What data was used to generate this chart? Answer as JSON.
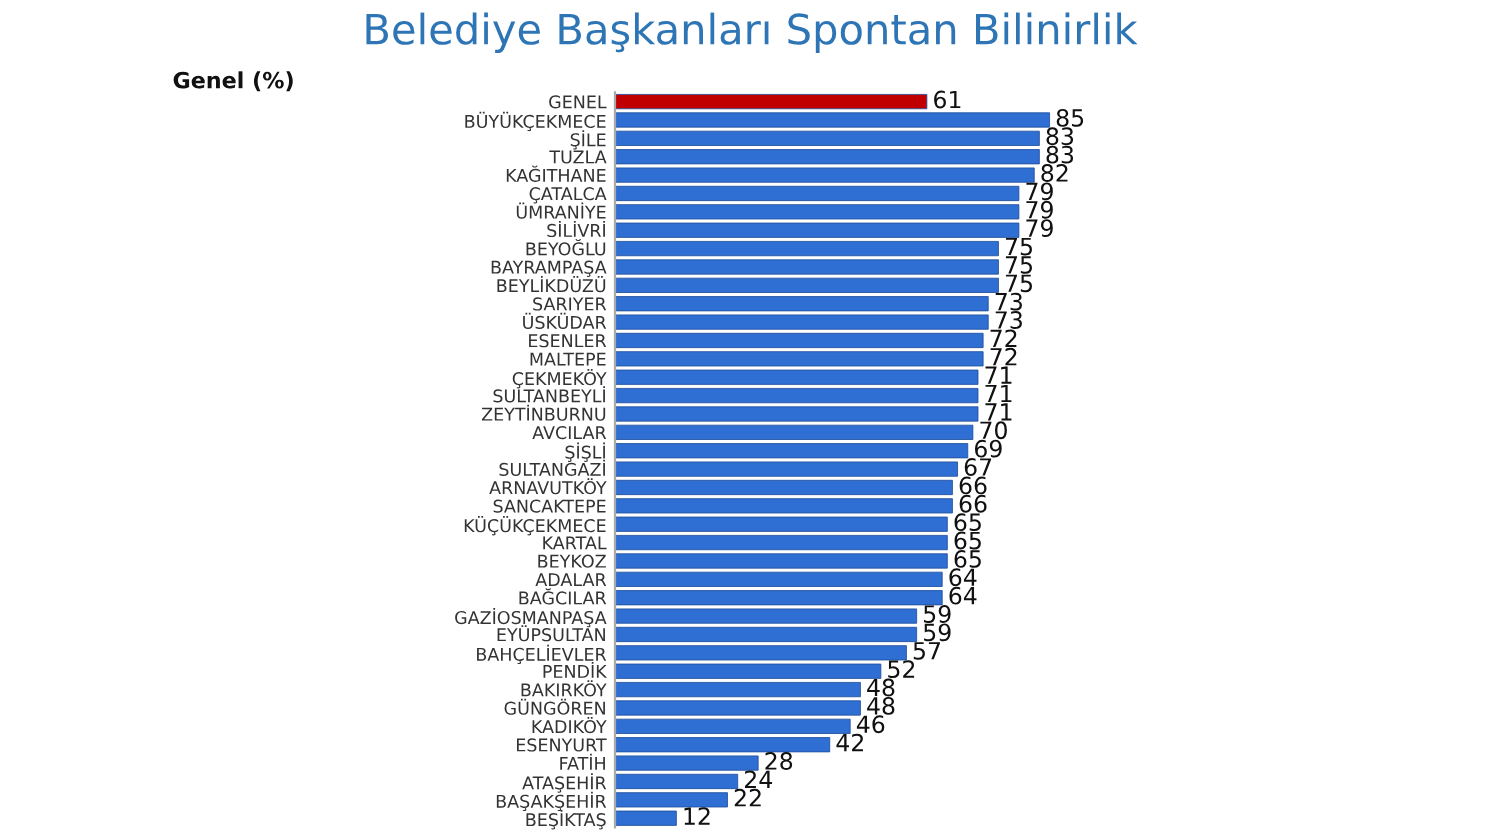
{
  "chart_data": {
    "type": "bar",
    "orientation": "horizontal",
    "title": "Belediye Başkanları Spontan Bilinirlik",
    "subtitle": "Genel (%)",
    "categories": [
      "GENEL",
      "BÜYÜKÇEKMECE",
      "ŞİLE",
      "TUZLA",
      "KAĞITHANE",
      "ÇATALCA",
      "ÜMRANİYE",
      "SİLİVRİ",
      "BEYOĞLU",
      "BAYRAMPAŞA",
      "BEYLİKDÜZÜ",
      "SARIYER",
      "ÜSKÜDAR",
      "ESENLER",
      "MALTEPE",
      "ÇEKMEKÖY",
      "SULTANBEYLİ",
      "ZEYTİNBURNU",
      "AVCILAR",
      "ŞİŞLİ",
      "SULTANGAZİ",
      "ARNAVUTKÖY",
      "SANCAKTEPE",
      "KÜÇÜKÇEKMECE",
      "KARTAL",
      "BEYKOZ",
      "ADALAR",
      "BAĞCILAR",
      "GAZİOSMANPAŞA",
      "EYÜPSULTAN",
      "BAHÇELİEVLER",
      "PENDİK",
      "BAKIRKÖY",
      "GÜNGÖREN",
      "KADIKÖY",
      "ESENYURT",
      "FATİH",
      "ATAŞEHİR",
      "BAŞAKŞEHİR",
      "BEŞİKTAŞ"
    ],
    "values": [
      61,
      85,
      83,
      83,
      82,
      79,
      79,
      79,
      75,
      75,
      75,
      73,
      73,
      72,
      72,
      71,
      71,
      71,
      70,
      69,
      67,
      66,
      66,
      65,
      65,
      65,
      64,
      64,
      59,
      59,
      57,
      52,
      48,
      48,
      46,
      42,
      28,
      24,
      22,
      12
    ],
    "colors": [
      "#c00000",
      "#2f6ed3",
      "#2f6ed3",
      "#2f6ed3",
      "#2f6ed3",
      "#2f6ed3",
      "#2f6ed3",
      "#2f6ed3",
      "#2f6ed3",
      "#2f6ed3",
      "#2f6ed3",
      "#2f6ed3",
      "#2f6ed3",
      "#2f6ed3",
      "#2f6ed3",
      "#2f6ed3",
      "#2f6ed3",
      "#2f6ed3",
      "#2f6ed3",
      "#2f6ed3",
      "#2f6ed3",
      "#2f6ed3",
      "#2f6ed3",
      "#2f6ed3",
      "#2f6ed3",
      "#2f6ed3",
      "#2f6ed3",
      "#2f6ed3",
      "#2f6ed3",
      "#2f6ed3",
      "#2f6ed3",
      "#2f6ed3",
      "#2f6ed3",
      "#2f6ed3",
      "#2f6ed3",
      "#2f6ed3",
      "#2f6ed3",
      "#2f6ed3",
      "#2f6ed3",
      "#2f6ed3"
    ],
    "data_labels": true,
    "grid": false,
    "legend": false
  }
}
